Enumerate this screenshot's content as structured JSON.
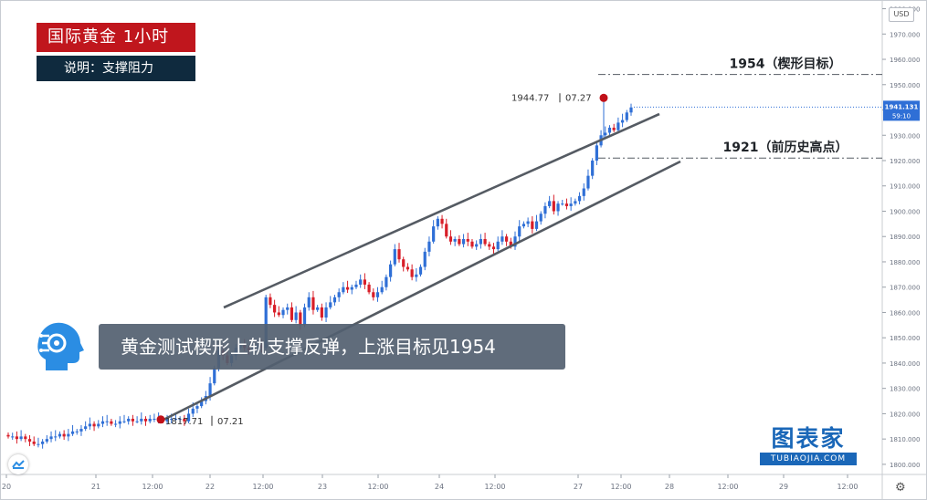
{
  "header": {
    "title": "国际黄金  1小时",
    "note": "说明：支撑阻力"
  },
  "caption": "黄金测试楔形上轨支撑反弹，上涨目标见1954",
  "logo": {
    "main": "图表家",
    "sub": "TUBIAOJIA.COM"
  },
  "axis": {
    "currency": "USD"
  },
  "chart_data": {
    "type": "candlestick",
    "instrument": "国际黄金",
    "timeframe": "1小时",
    "y_axis": {
      "ticks": [
        1800,
        1810,
        1820,
        1830,
        1840,
        1850,
        1860,
        1870,
        1880,
        1890,
        1900,
        1910,
        1920,
        1930,
        1940,
        1950,
        1960,
        1970,
        1980
      ],
      "tick_labels": [
        "1800.000",
        "1810.000",
        "1820.000",
        "1830.000",
        "1840.000",
        "1850.000",
        "1860.000",
        "1870.000",
        "1880.000",
        "1890.000",
        "1900.000",
        "1910.000",
        "1920.000",
        "1930.000",
        "1940.000",
        "1950.000",
        "1960.000",
        "1970.000",
        "1980.000"
      ],
      "range": [
        1796,
        1982
      ]
    },
    "x_axis": {
      "tick_labels": [
        "20",
        "21",
        "12:00",
        "22",
        "12:00",
        "23",
        "12:00",
        "24",
        "12:00",
        "27",
        "12:00",
        "28",
        "12:00",
        "29",
        "12:00"
      ]
    },
    "current_price": {
      "label": "1941.131",
      "countdown": "59:10",
      "value": 1941.13
    },
    "annotations": [
      {
        "label": "1954（楔形目标）",
        "value": 1954,
        "style": "dash-dot"
      },
      {
        "label": "1921（前历史高点）",
        "value": 1921,
        "style": "dash-dot"
      },
      {
        "label": "1944.77",
        "time": "07.27",
        "value": 1944.77,
        "marker": "high"
      },
      {
        "label": "1817.71",
        "time": "07.21",
        "value": 1817.71,
        "marker": "low"
      }
    ],
    "channel": {
      "upper": {
        "from": {
          "time": "07.22",
          "value": 1866
        },
        "to": {
          "time": "07.28",
          "value": 1932
        }
      },
      "lower": {
        "from": {
          "time": "07.21",
          "value": 1817
        },
        "to": {
          "time": "07.28",
          "value": 1920
        }
      }
    },
    "candles_close": [
      1811,
      1811,
      1810,
      1811,
      1810,
      1809,
      1808,
      1808,
      1809,
      1810,
      1811,
      1811,
      1812,
      1811,
      1812,
      1813,
      1813,
      1814,
      1815,
      1816,
      1815,
      1816,
      1817,
      1817,
      1816,
      1816,
      1817,
      1817,
      1818,
      1817,
      1817,
      1818,
      1817,
      1818,
      1818,
      1818,
      1817,
      1818,
      1818,
      1818,
      1818,
      1817,
      1820,
      1822,
      1823,
      1825,
      1827,
      1832,
      1838,
      1845,
      1843,
      1840,
      1843,
      1846,
      1847,
      1846,
      1845,
      1846,
      1847,
      1846,
      1866,
      1863,
      1860,
      1859,
      1861,
      1862,
      1857,
      1860,
      1855,
      1862,
      1866,
      1861,
      1862,
      1858,
      1862,
      1864,
      1866,
      1868,
      1870,
      1869,
      1870,
      1871,
      1873,
      1871,
      1868,
      1866,
      1868,
      1870,
      1874,
      1879,
      1885,
      1881,
      1878,
      1877,
      1874,
      1875,
      1878,
      1884,
      1888,
      1894,
      1897,
      1895,
      1890,
      1888,
      1889,
      1887,
      1889,
      1888,
      1886,
      1887,
      1889,
      1887,
      1886,
      1885,
      1888,
      1890,
      1888,
      1886,
      1890,
      1894,
      1895,
      1896,
      1893,
      1896,
      1899,
      1902,
      1904,
      1900,
      1903,
      1903,
      1902,
      1903,
      1904,
      1906,
      1909,
      1914,
      1920,
      1926,
      1930,
      1931,
      1933,
      1932,
      1935,
      1936,
      1939,
      1941
    ]
  }
}
